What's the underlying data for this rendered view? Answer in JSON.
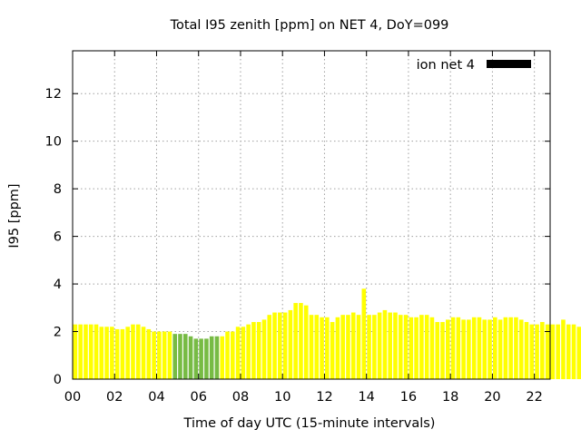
{
  "chart_data": {
    "type": "bar",
    "title": "Total I95 zenith [ppm] on NET 4, DoY=099",
    "xlabel": "Time of day UTC (15-minute intervals)",
    "ylabel": "I95 [ppm]",
    "xlim": [
      0,
      22.75
    ],
    "ylim": [
      0,
      13.8
    ],
    "x_ticks": [
      "00",
      "02",
      "04",
      "06",
      "08",
      "10",
      "12",
      "14",
      "16",
      "18",
      "20",
      "22"
    ],
    "y_ticks": [
      "0",
      "2",
      "4",
      "6",
      "8",
      "10",
      "12"
    ],
    "grid": true,
    "legend": {
      "position": "top-right",
      "entries": [
        {
          "label": "ion net 4",
          "color": "#000000"
        }
      ]
    },
    "colors": {
      "normal": "#ffff00",
      "highlight": "#77bb44",
      "bar_edge": "#eeee00"
    },
    "bar_interval_hours": 0.25,
    "highlighted_range_hours": [
      4.75,
      7.0
    ],
    "series": [
      {
        "values": [
          2.3,
          2.3,
          2.3,
          2.3,
          2.3,
          2.2,
          2.2,
          2.2,
          2.1,
          2.1,
          2.2,
          2.3,
          2.3,
          2.2,
          2.1,
          2.0,
          2.0,
          2.0,
          2.0,
          1.9,
          1.9,
          1.9,
          1.8,
          1.7,
          1.7,
          1.7,
          1.8,
          1.8,
          1.8,
          2.0,
          2.0,
          2.2,
          2.2,
          2.3,
          2.4,
          2.4,
          2.5,
          2.7,
          2.8,
          2.8,
          2.8,
          2.9,
          3.2,
          3.2,
          3.1,
          2.7,
          2.7,
          2.6,
          2.6,
          2.4,
          2.6,
          2.7,
          2.7,
          2.8,
          2.7,
          3.8,
          2.7,
          2.7,
          2.8,
          2.9,
          2.8,
          2.8,
          2.7,
          2.7,
          2.6,
          2.6,
          2.7,
          2.7,
          2.6,
          2.4,
          2.4,
          2.5,
          2.6,
          2.6,
          2.5,
          2.5,
          2.6,
          2.6,
          2.5,
          2.5,
          2.6,
          2.5,
          2.6,
          2.6,
          2.6,
          2.5,
          2.4,
          2.3,
          2.3,
          2.4,
          2.3,
          2.3,
          2.3,
          2.5,
          2.3,
          2.3,
          2.2,
          2.2
        ]
      }
    ]
  }
}
